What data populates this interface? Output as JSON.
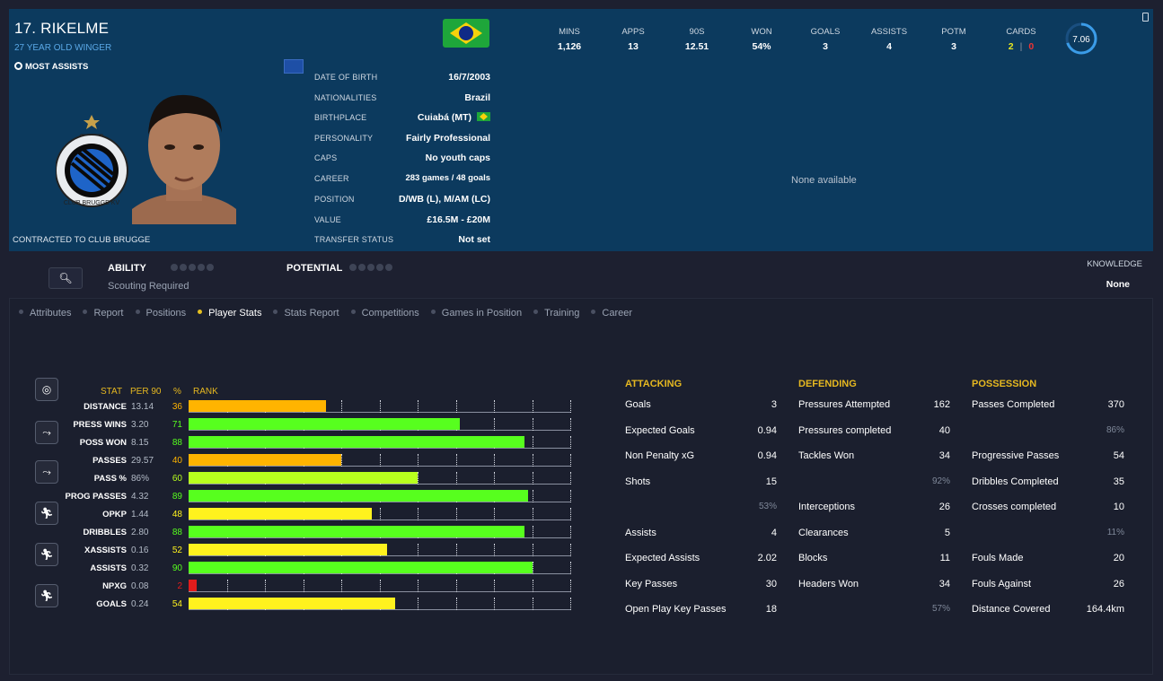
{
  "header": {
    "name": "17. RIKELME",
    "subtitle": "27 YEAR OLD WINGER",
    "tag": "MOST ASSISTS",
    "contract": "CONTRACTED TO CLUB BRUGGE",
    "flag_colors": {
      "green": "#1ea63a",
      "yellow": "#f6d20b",
      "blue": "#102a86"
    },
    "details": [
      {
        "label": "DATE OF BIRTH",
        "value": "16/7/2003"
      },
      {
        "label": "NATIONALITIES",
        "value": "Brazil"
      },
      {
        "label": "BIRTHPLACE",
        "value": "Cuiabá (MT)"
      },
      {
        "label": "PERSONALITY",
        "value": "Fairly Professional"
      },
      {
        "label": "CAPS",
        "value": "No youth caps"
      },
      {
        "label": "CAREER",
        "value": "283 games /  48  goals"
      },
      {
        "label": "POSITION",
        "value": "D/WB (L), M/AM (LC)"
      },
      {
        "label": "VALUE",
        "value": "£16.5M - £20M"
      },
      {
        "label": "TRANSFER STATUS",
        "value": "Not set"
      }
    ],
    "crest_text": "CLUB BRUGGE KV",
    "crest_year": "1891",
    "stats": [
      {
        "label": "MINS",
        "value": "1,126"
      },
      {
        "label": "APPS",
        "value": "13"
      },
      {
        "label": "90S",
        "value": "12.51"
      },
      {
        "label": "WON",
        "value": "54%"
      },
      {
        "label": "GOALS",
        "value": "3"
      },
      {
        "label": "ASSISTS",
        "value": "4"
      },
      {
        "label": "POTM",
        "value": "3"
      }
    ],
    "cards": {
      "label": "CARDS",
      "yellow": "2",
      "sep": "|",
      "red": "0"
    },
    "rating": {
      "value": "7.06",
      "fraction": 0.7
    },
    "none_available": "None available"
  },
  "ability": {
    "ability_label": "ABILITY",
    "scouting": "Scouting Required",
    "potential_label": "POTENTIAL",
    "knowledge_label": "KNOWLEDGE",
    "knowledge_value": "None"
  },
  "tabs": [
    {
      "label": "Attributes",
      "active": false
    },
    {
      "label": "Report",
      "active": false
    },
    {
      "label": "Positions",
      "active": false
    },
    {
      "label": "Player Stats",
      "active": true
    },
    {
      "label": "Stats Report",
      "active": false
    },
    {
      "label": "Competitions",
      "active": false
    },
    {
      "label": "Games in Position",
      "active": false
    },
    {
      "label": "Training",
      "active": false
    },
    {
      "label": "Career",
      "active": false
    }
  ],
  "chart_data": {
    "type": "bar",
    "headers": {
      "stat": "STAT",
      "per90": "PER 90",
      "pct": "%",
      "rank": "RANK"
    },
    "categories": [
      "DISTANCE",
      "PRESS WINS",
      "POSS WON",
      "PASSES",
      "PASS %",
      "PROG PASSES",
      "OPKP",
      "DRIBBLES",
      "XASSISTS",
      "ASSISTS",
      "NPXG",
      "GOALS"
    ],
    "per90": [
      "13.14",
      "3.20",
      "8.15",
      "29.57",
      "86%",
      "4.32",
      "1.44",
      "2.80",
      "0.16",
      "0.32",
      "0.08",
      "0.24"
    ],
    "values": [
      36,
      71,
      88,
      40,
      60,
      89,
      48,
      88,
      52,
      90,
      2,
      54
    ],
    "ylim": [
      0,
      100
    ],
    "colors": {
      "low": "#e31c1c",
      "mid_low": "#ffb400",
      "mid": "#fff21e",
      "high": "#b8ff1e",
      "top": "#57ff1e"
    }
  },
  "tables": [
    {
      "title": "ATTACKING",
      "rows": [
        {
          "label": "Goals",
          "value": "3"
        },
        {
          "label": "Expected Goals",
          "value": "0.94"
        },
        {
          "label": "Non Penalty xG",
          "value": "0.94"
        },
        {
          "label": "Shots",
          "value": "15"
        },
        {
          "label": "",
          "value": "",
          "pct": "53%"
        },
        {
          "label": "Assists",
          "value": "4"
        },
        {
          "label": "Expected Assists",
          "value": "2.02"
        },
        {
          "label": "Key Passes",
          "value": "30"
        },
        {
          "label": "Open Play Key Passes",
          "value": "18"
        }
      ]
    },
    {
      "title": "DEFENDING",
      "rows": [
        {
          "label": "Pressures Attempted",
          "value": "162"
        },
        {
          "label": "Pressures completed",
          "value": "40"
        },
        {
          "label": "Tackles Won",
          "value": "34"
        },
        {
          "label": "",
          "value": "",
          "pct": "92%"
        },
        {
          "label": "Interceptions",
          "value": "26"
        },
        {
          "label": "Clearances",
          "value": "5"
        },
        {
          "label": "Blocks",
          "value": "11"
        },
        {
          "label": "Headers Won",
          "value": "34"
        },
        {
          "label": "",
          "value": "",
          "pct": "57%"
        }
      ]
    },
    {
      "title": "POSSESSION",
      "rows": [
        {
          "label": "Passes Completed",
          "value": "370"
        },
        {
          "label": "",
          "value": "",
          "pct": "86%"
        },
        {
          "label": "Progressive Passes",
          "value": "54"
        },
        {
          "label": "Dribbles Completed",
          "value": "35"
        },
        {
          "label": "Crosses completed",
          "value": "10"
        },
        {
          "label": "",
          "value": "",
          "pct": "11%"
        },
        {
          "label": "Fouls Made",
          "value": "20"
        },
        {
          "label": "Fouls Against",
          "value": "26"
        },
        {
          "label": "Distance Covered",
          "value": "164.4km"
        }
      ]
    }
  ]
}
